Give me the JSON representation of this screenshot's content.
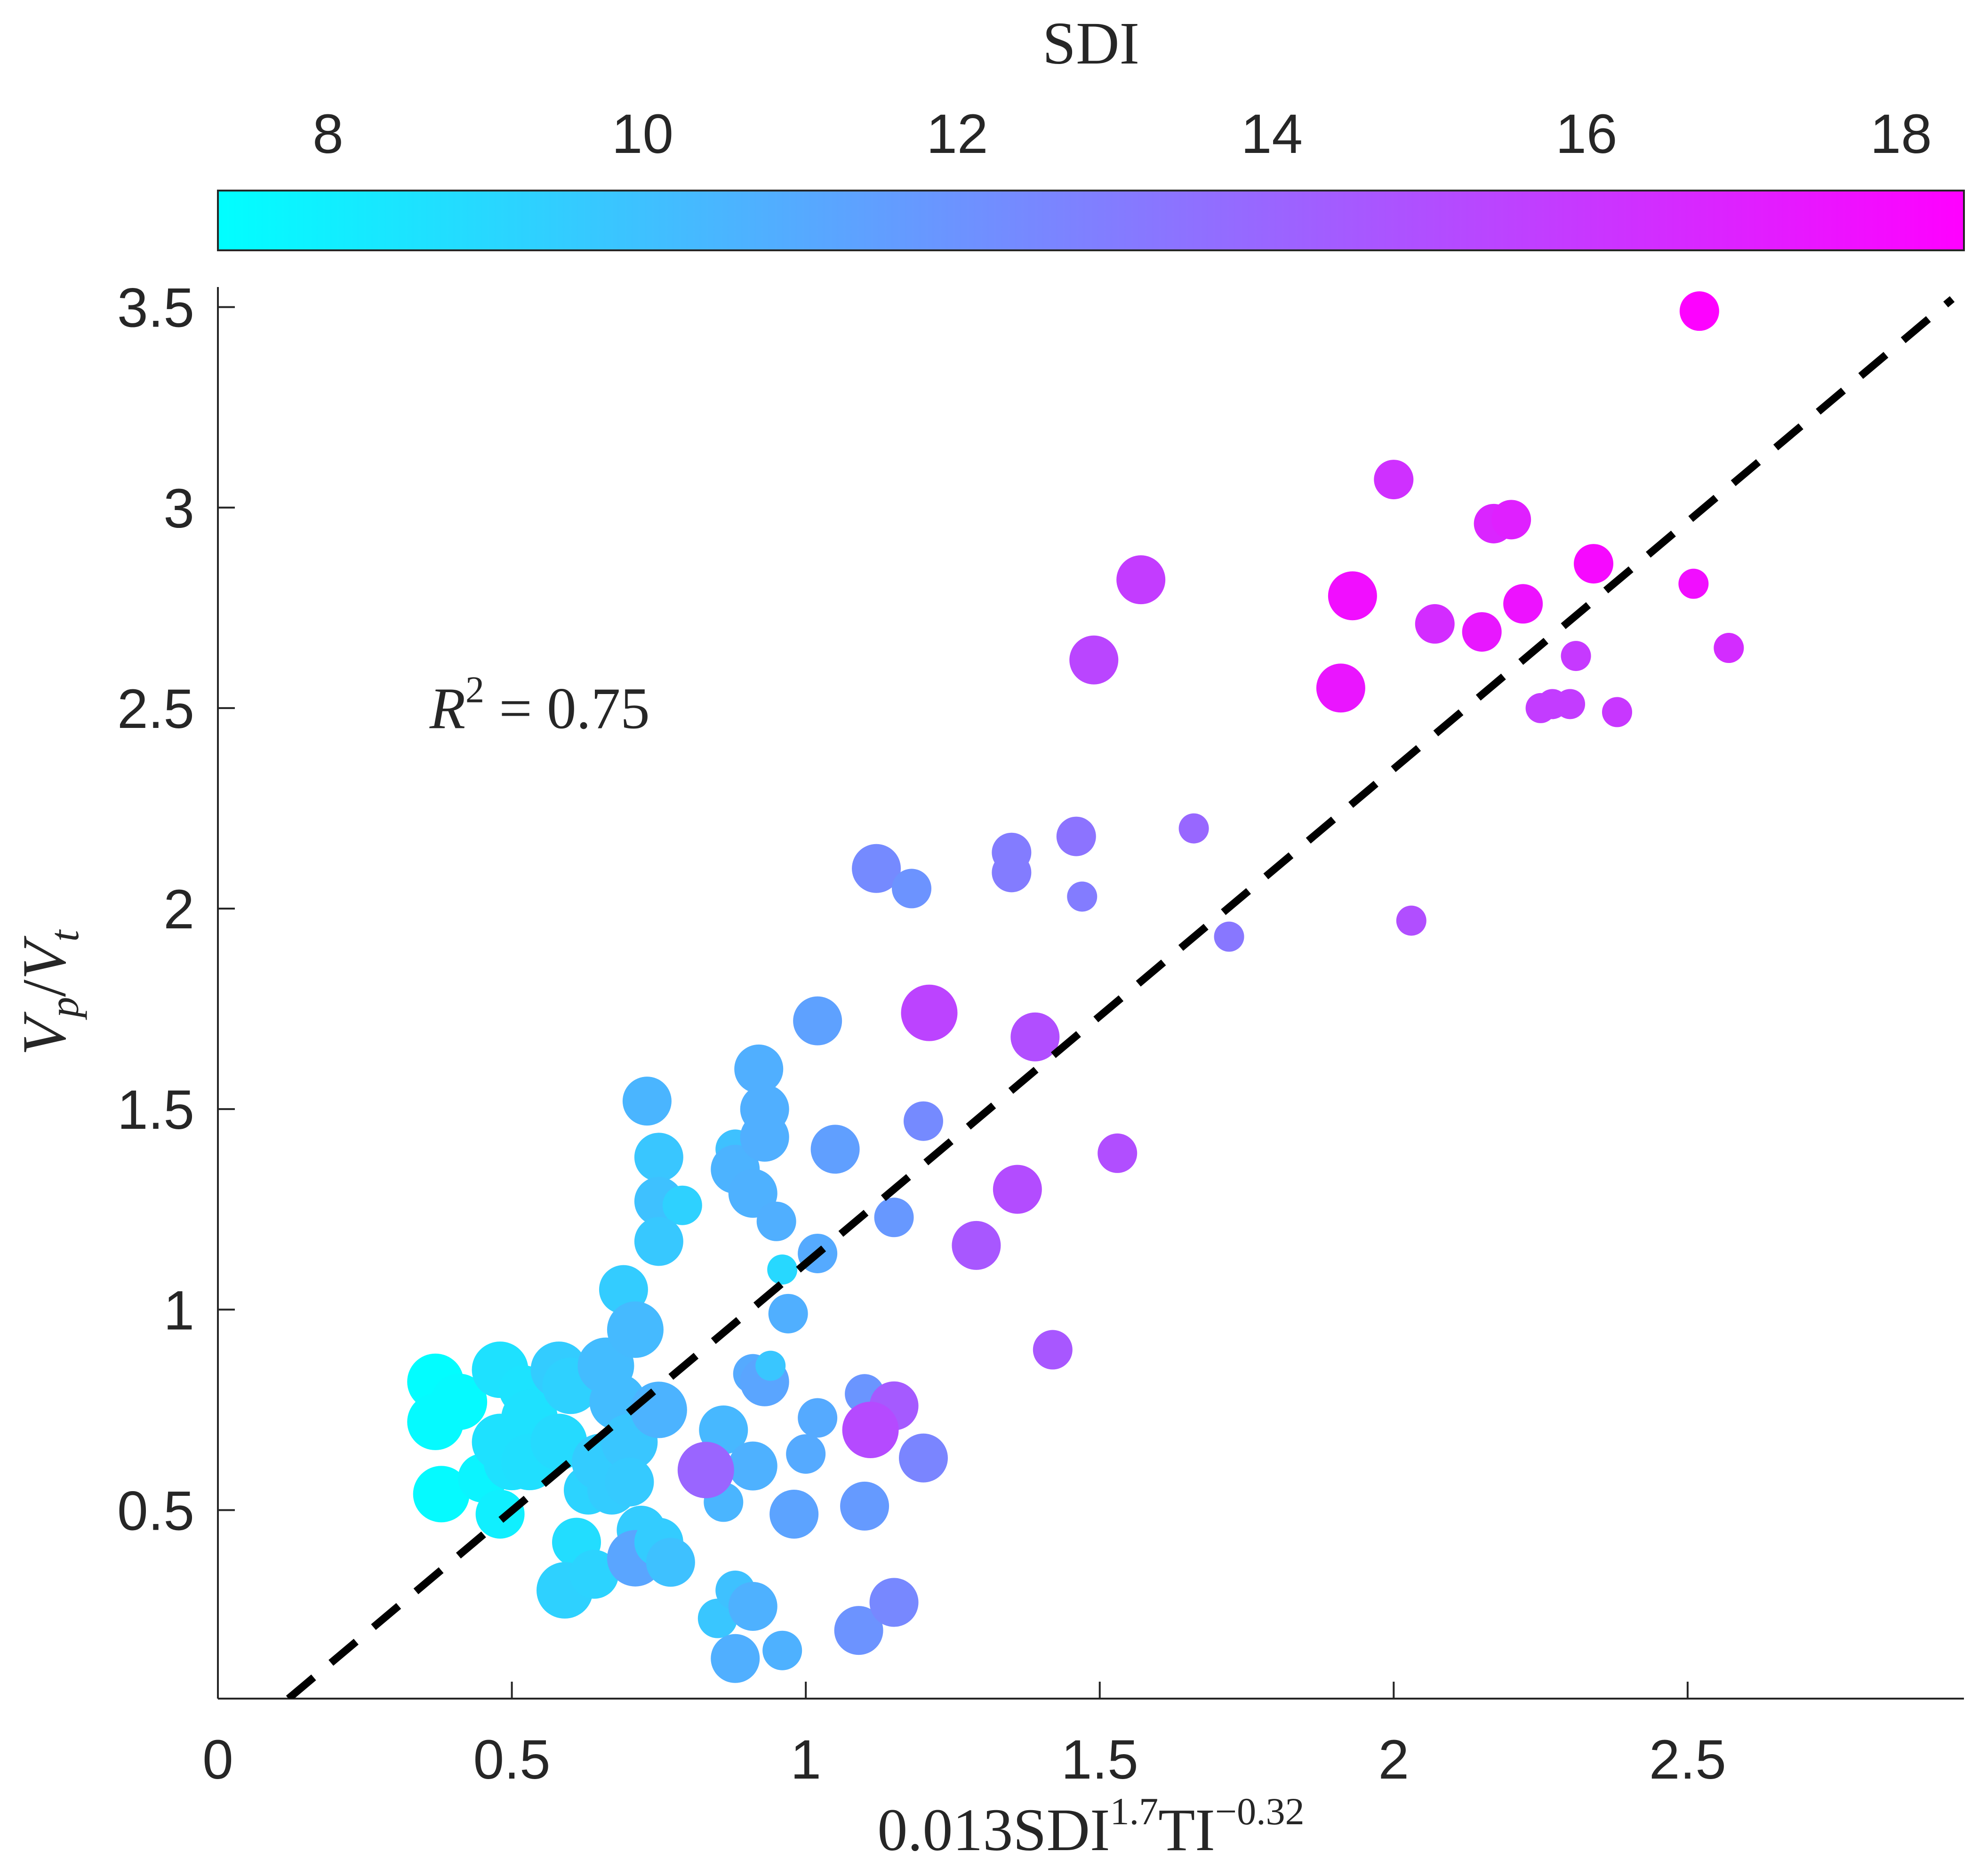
{
  "chart_data": {
    "type": "scatter",
    "xlabel": "0.013SDI^{1.7}TI^{-0.32}",
    "ylabel": "V_p/V_t",
    "xlim": [
      0,
      2.97
    ],
    "ylim": [
      0.03,
      3.55
    ],
    "x_ticks": [
      0,
      0.5,
      1,
      1.5,
      2,
      2.5
    ],
    "y_ticks": [
      0.5,
      1,
      1.5,
      2,
      2.5,
      3,
      3.5
    ],
    "grid": false,
    "annotation": {
      "label": "R^2 = 0.75",
      "x": 0.36,
      "y": 2.45
    },
    "fit_line": {
      "style": "dashed",
      "color": "#000000",
      "points": [
        [
          0.12,
          0.03
        ],
        [
          2.95,
          3.52
        ]
      ]
    },
    "colorbar": {
      "label": "SDI",
      "placement": "top",
      "ticks": [
        8,
        10,
        12,
        14,
        16,
        18
      ],
      "range": [
        7.3,
        18.4
      ],
      "colormap": [
        "#00FFFF",
        "#FF00FF"
      ]
    },
    "size_encoding": "marker size varies (unlabeled)",
    "points": [
      {
        "x": 0.37,
        "y": 0.82,
        "sdi": 7.4,
        "s": 3
      },
      {
        "x": 0.41,
        "y": 0.77,
        "sdi": 7.5,
        "s": 3
      },
      {
        "x": 0.37,
        "y": 0.72,
        "sdi": 7.5,
        "s": 3
      },
      {
        "x": 0.38,
        "y": 0.54,
        "sdi": 7.5,
        "s": 3
      },
      {
        "x": 0.45,
        "y": 0.58,
        "sdi": 7.8,
        "s": 2
      },
      {
        "x": 0.48,
        "y": 0.85,
        "sdi": 8.6,
        "s": 3
      },
      {
        "x": 0.52,
        "y": 0.8,
        "sdi": 8.5,
        "s": 2
      },
      {
        "x": 0.48,
        "y": 0.67,
        "sdi": 8.6,
        "s": 3
      },
      {
        "x": 0.5,
        "y": 0.62,
        "sdi": 8.6,
        "s": 3
      },
      {
        "x": 0.53,
        "y": 0.73,
        "sdi": 8.6,
        "s": 3
      },
      {
        "x": 0.53,
        "y": 0.62,
        "sdi": 8.7,
        "s": 3
      },
      {
        "x": 0.48,
        "y": 0.49,
        "sdi": 8.0,
        "s": 2
      },
      {
        "x": 0.58,
        "y": 0.67,
        "sdi": 8.9,
        "s": 3
      },
      {
        "x": 0.58,
        "y": 0.85,
        "sdi": 9.5,
        "s": 3
      },
      {
        "x": 0.6,
        "y": 0.81,
        "sdi": 9.3,
        "s": 3
      },
      {
        "x": 0.61,
        "y": 0.42,
        "sdi": 8.8,
        "s": 2
      },
      {
        "x": 0.59,
        "y": 0.3,
        "sdi": 9.3,
        "s": 3
      },
      {
        "x": 0.64,
        "y": 0.34,
        "sdi": 9.2,
        "s": 2
      },
      {
        "x": 0.63,
        "y": 0.55,
        "sdi": 9.2,
        "s": 2
      },
      {
        "x": 0.65,
        "y": 0.62,
        "sdi": 9.5,
        "s": 3
      },
      {
        "x": 0.66,
        "y": 0.86,
        "sdi": 10.2,
        "s": 3
      },
      {
        "x": 0.68,
        "y": 0.77,
        "sdi": 10.2,
        "s": 3
      },
      {
        "x": 0.67,
        "y": 0.55,
        "sdi": 9.5,
        "s": 2
      },
      {
        "x": 0.7,
        "y": 0.67,
        "sdi": 9.8,
        "s": 3
      },
      {
        "x": 0.7,
        "y": 0.57,
        "sdi": 9.6,
        "s": 2
      },
      {
        "x": 0.69,
        "y": 1.05,
        "sdi": 9.5,
        "s": 2
      },
      {
        "x": 0.71,
        "y": 0.95,
        "sdi": 10.3,
        "s": 3
      },
      {
        "x": 0.72,
        "y": 0.45,
        "sdi": 9.5,
        "s": 2
      },
      {
        "x": 0.71,
        "y": 0.38,
        "sdi": 11.2,
        "s": 3
      },
      {
        "x": 0.75,
        "y": 0.42,
        "sdi": 9.5,
        "s": 2
      },
      {
        "x": 0.75,
        "y": 0.75,
        "sdi": 10.6,
        "s": 3
      },
      {
        "x": 0.77,
        "y": 0.37,
        "sdi": 10.0,
        "s": 2
      },
      {
        "x": 0.73,
        "y": 1.52,
        "sdi": 10.5,
        "s": 2
      },
      {
        "x": 0.75,
        "y": 1.38,
        "sdi": 9.8,
        "s": 2
      },
      {
        "x": 0.75,
        "y": 1.27,
        "sdi": 10.0,
        "s": 2
      },
      {
        "x": 0.79,
        "y": 1.26,
        "sdi": 9.3,
        "s": 1
      },
      {
        "x": 0.75,
        "y": 1.17,
        "sdi": 9.7,
        "s": 2
      },
      {
        "x": 0.85,
        "y": 0.23,
        "sdi": 9.8,
        "s": 1
      },
      {
        "x": 0.86,
        "y": 0.52,
        "sdi": 10.5,
        "s": 1
      },
      {
        "x": 0.86,
        "y": 0.7,
        "sdi": 10.4,
        "s": 2
      },
      {
        "x": 0.88,
        "y": 1.4,
        "sdi": 10.0,
        "s": 1
      },
      {
        "x": 0.88,
        "y": 1.35,
        "sdi": 10.6,
        "s": 2
      },
      {
        "x": 0.88,
        "y": 0.3,
        "sdi": 10.0,
        "s": 1
      },
      {
        "x": 0.88,
        "y": 0.13,
        "sdi": 10.8,
        "s": 2
      },
      {
        "x": 0.91,
        "y": 0.26,
        "sdi": 10.7,
        "s": 2
      },
      {
        "x": 0.91,
        "y": 0.61,
        "sdi": 10.7,
        "s": 2
      },
      {
        "x": 0.91,
        "y": 1.29,
        "sdi": 10.7,
        "s": 2
      },
      {
        "x": 0.92,
        "y": 1.6,
        "sdi": 10.8,
        "s": 2
      },
      {
        "x": 0.93,
        "y": 1.5,
        "sdi": 10.8,
        "s": 2
      },
      {
        "x": 0.93,
        "y": 1.43,
        "sdi": 10.8,
        "s": 2
      },
      {
        "x": 0.91,
        "y": 0.84,
        "sdi": 11.0,
        "s": 1
      },
      {
        "x": 0.93,
        "y": 0.82,
        "sdi": 11.2,
        "s": 2
      },
      {
        "x": 0.94,
        "y": 0.86,
        "sdi": 9.8,
        "s": 0
      },
      {
        "x": 0.95,
        "y": 1.22,
        "sdi": 10.8,
        "s": 1
      },
      {
        "x": 0.96,
        "y": 0.15,
        "sdi": 10.7,
        "s": 1
      },
      {
        "x": 0.96,
        "y": 1.1,
        "sdi": 9.0,
        "s": 0
      },
      {
        "x": 0.97,
        "y": 0.99,
        "sdi": 10.8,
        "s": 1
      },
      {
        "x": 0.98,
        "y": 0.49,
        "sdi": 11.3,
        "s": 2
      },
      {
        "x": 1.0,
        "y": 0.64,
        "sdi": 11.0,
        "s": 1
      },
      {
        "x": 1.02,
        "y": 1.14,
        "sdi": 11.0,
        "s": 1
      },
      {
        "x": 1.02,
        "y": 0.73,
        "sdi": 11.0,
        "s": 1
      },
      {
        "x": 1.02,
        "y": 1.72,
        "sdi": 11.4,
        "s": 2
      },
      {
        "x": 1.05,
        "y": 1.4,
        "sdi": 11.5,
        "s": 2
      },
      {
        "x": 1.1,
        "y": 0.51,
        "sdi": 11.7,
        "s": 2
      },
      {
        "x": 1.09,
        "y": 0.2,
        "sdi": 12.0,
        "s": 2
      },
      {
        "x": 1.1,
        "y": 0.79,
        "sdi": 11.9,
        "s": 1
      },
      {
        "x": 1.12,
        "y": 2.1,
        "sdi": 12.4,
        "s": 2
      },
      {
        "x": 1.15,
        "y": 1.23,
        "sdi": 11.8,
        "s": 1
      },
      {
        "x": 1.15,
        "y": 0.76,
        "sdi": 14.5,
        "s": 2
      },
      {
        "x": 1.15,
        "y": 0.27,
        "sdi": 12.5,
        "s": 2
      },
      {
        "x": 1.11,
        "y": 0.7,
        "sdi": 15.2,
        "s": 3
      },
      {
        "x": 1.18,
        "y": 2.05,
        "sdi": 12.0,
        "s": 1
      },
      {
        "x": 1.2,
        "y": 0.63,
        "sdi": 12.6,
        "s": 2
      },
      {
        "x": 1.2,
        "y": 1.47,
        "sdi": 12.4,
        "s": 1
      },
      {
        "x": 1.21,
        "y": 1.74,
        "sdi": 15.5,
        "s": 3
      },
      {
        "x": 0.83,
        "y": 0.6,
        "sdi": 14.0,
        "s": 3
      },
      {
        "x": 1.29,
        "y": 1.16,
        "sdi": 14.6,
        "s": 2
      },
      {
        "x": 1.35,
        "y": 2.14,
        "sdi": 13.0,
        "s": 1
      },
      {
        "x": 1.35,
        "y": 2.09,
        "sdi": 13.0,
        "s": 1
      },
      {
        "x": 1.36,
        "y": 1.3,
        "sdi": 15.1,
        "s": 2
      },
      {
        "x": 1.39,
        "y": 1.68,
        "sdi": 15.0,
        "s": 2
      },
      {
        "x": 1.42,
        "y": 0.9,
        "sdi": 14.6,
        "s": 1
      },
      {
        "x": 1.46,
        "y": 2.18,
        "sdi": 13.4,
        "s": 1
      },
      {
        "x": 1.47,
        "y": 2.03,
        "sdi": 13.0,
        "s": 0
      },
      {
        "x": 1.49,
        "y": 2.62,
        "sdi": 15.4,
        "s": 2
      },
      {
        "x": 1.53,
        "y": 1.39,
        "sdi": 15.0,
        "s": 1
      },
      {
        "x": 1.57,
        "y": 2.82,
        "sdi": 15.8,
        "s": 2
      },
      {
        "x": 1.66,
        "y": 2.2,
        "sdi": 13.9,
        "s": 0
      },
      {
        "x": 1.72,
        "y": 1.93,
        "sdi": 13.2,
        "s": 0
      },
      {
        "x": 1.91,
        "y": 2.55,
        "sdi": 17.5,
        "s": 2
      },
      {
        "x": 1.93,
        "y": 2.78,
        "sdi": 17.8,
        "s": 2
      },
      {
        "x": 2.0,
        "y": 3.07,
        "sdi": 16.3,
        "s": 1
      },
      {
        "x": 2.03,
        "y": 1.97,
        "sdi": 15.0,
        "s": 0
      },
      {
        "x": 2.07,
        "y": 2.71,
        "sdi": 16.5,
        "s": 1
      },
      {
        "x": 2.15,
        "y": 2.69,
        "sdi": 17.4,
        "s": 1
      },
      {
        "x": 2.17,
        "y": 2.96,
        "sdi": 16.8,
        "s": 1
      },
      {
        "x": 2.2,
        "y": 2.97,
        "sdi": 17.0,
        "s": 1
      },
      {
        "x": 2.22,
        "y": 2.76,
        "sdi": 17.6,
        "s": 1
      },
      {
        "x": 2.25,
        "y": 2.5,
        "sdi": 15.8,
        "s": 0
      },
      {
        "x": 2.27,
        "y": 2.51,
        "sdi": 15.8,
        "s": 0
      },
      {
        "x": 2.3,
        "y": 2.51,
        "sdi": 15.8,
        "s": 0
      },
      {
        "x": 2.31,
        "y": 2.63,
        "sdi": 15.9,
        "s": 0
      },
      {
        "x": 2.34,
        "y": 2.86,
        "sdi": 18.0,
        "s": 1
      },
      {
        "x": 2.38,
        "y": 2.49,
        "sdi": 16.0,
        "s": 0
      },
      {
        "x": 2.51,
        "y": 2.81,
        "sdi": 17.8,
        "s": 0
      },
      {
        "x": 2.52,
        "y": 3.49,
        "sdi": 18.3,
        "s": 1
      },
      {
        "x": 2.57,
        "y": 2.65,
        "sdi": 16.5,
        "s": 0
      }
    ]
  }
}
